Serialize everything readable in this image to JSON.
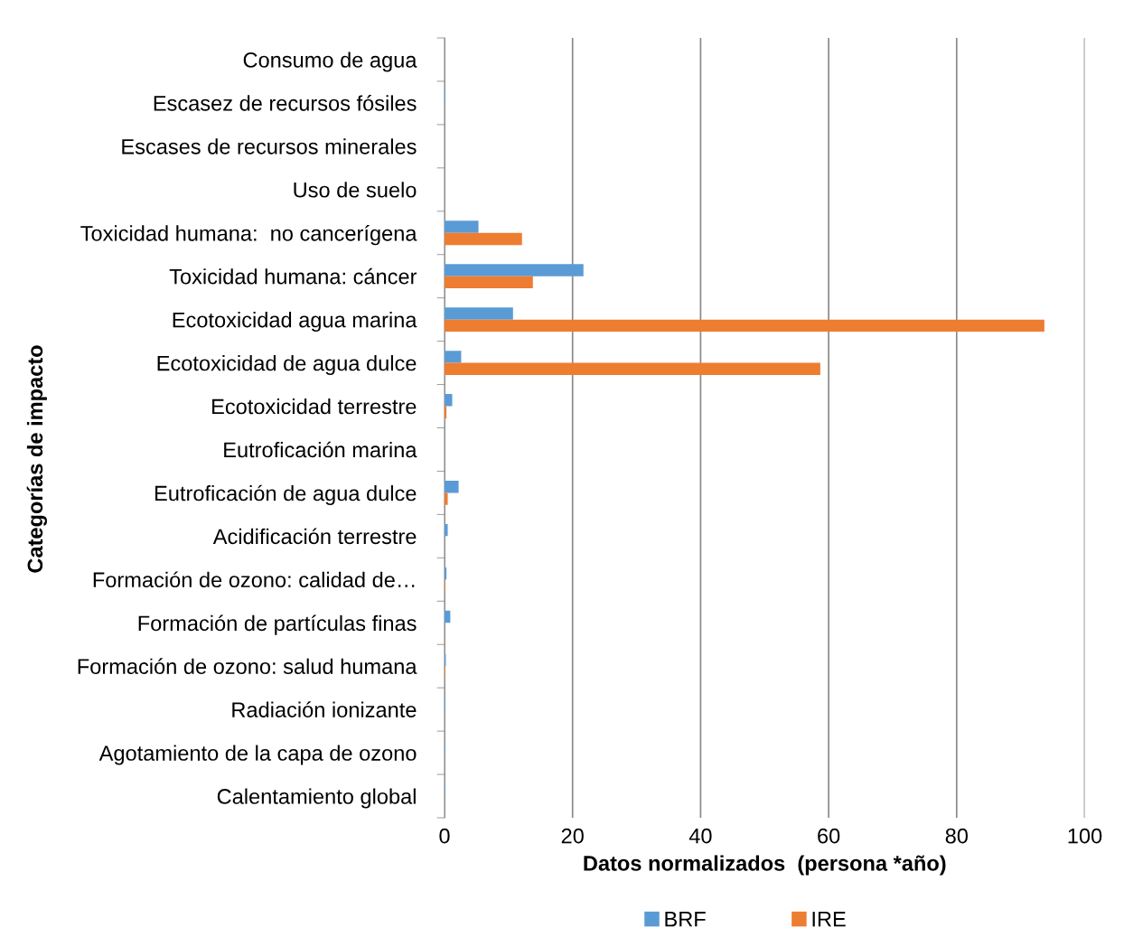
{
  "chart_data": {
    "type": "bar",
    "orientation": "horizontal",
    "categories": [
      "Consumo de agua",
      "Escasez de recursos fósiles",
      "Escases de recursos minerales",
      "Uso de suelo",
      "Toxicidad humana:  no cancerígena",
      "Toxicidad humana: cáncer",
      "Ecotoxicidad agua marina",
      "Ecotoxicidad de agua dulce",
      "Ecotoxicidad terrestre",
      "Eutroficación marina",
      "Eutroficación de agua dulce",
      "Acidificación terrestre",
      "Formación de ozono: calidad de…",
      "Formación de partículas finas",
      "Formación de ozono: salud humana",
      "Radiación ionizante",
      "Agotamiento de la capa de ozono",
      "Calentamiento global"
    ],
    "series": [
      {
        "name": "BRF",
        "color": "#5b9bd5",
        "values": [
          0,
          0.1,
          0,
          0,
          5.3,
          21.7,
          10.7,
          2.6,
          1.2,
          0,
          2.2,
          0.5,
          0.3,
          0.9,
          0.2,
          0.1,
          0.1,
          0.1
        ]
      },
      {
        "name": "IRE",
        "color": "#ed7d31",
        "values": [
          0,
          0,
          0,
          0,
          12.1,
          13.8,
          93.7,
          58.7,
          0.3,
          0,
          0.5,
          0,
          0.1,
          0,
          0.1,
          0,
          0,
          0
        ]
      }
    ],
    "xlim": [
      0,
      100
    ],
    "xticks": [
      0,
      20,
      40,
      60,
      80,
      100
    ],
    "xlabel": "Datos normalizados  (persona *año)",
    "ylabel": "Categorías de impacto",
    "grid": "x",
    "legend": "bottom"
  }
}
